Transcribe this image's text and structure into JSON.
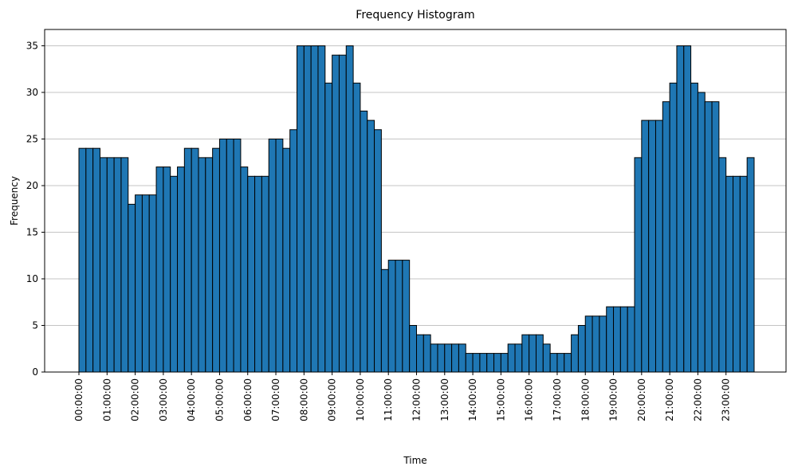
{
  "chart_data": {
    "type": "bar",
    "title": "Frequency Histogram",
    "xlabel": "Time",
    "ylabel": "Frequency",
    "ylim": [
      0,
      36.75
    ],
    "yticks": [
      0,
      5,
      10,
      15,
      20,
      25,
      30,
      35
    ],
    "grid": "y",
    "x_tick_labels": [
      "00:00:00",
      "01:00:00",
      "02:00:00",
      "03:00:00",
      "04:00:00",
      "05:00:00",
      "06:00:00",
      "07:00:00",
      "08:00:00",
      "09:00:00",
      "10:00:00",
      "11:00:00",
      "12:00:00",
      "13:00:00",
      "14:00:00",
      "15:00:00",
      "16:00:00",
      "17:00:00",
      "18:00:00",
      "19:00:00",
      "20:00:00",
      "21:00:00",
      "22:00:00",
      "23:00:00"
    ],
    "bin_width_minutes": 15,
    "values": [
      24,
      24,
      24,
      23,
      23,
      23,
      23,
      18,
      19,
      19,
      19,
      22,
      22,
      21,
      22,
      24,
      24,
      23,
      23,
      24,
      25,
      25,
      25,
      22,
      21,
      21,
      21,
      25,
      25,
      24,
      26,
      35,
      35,
      35,
      35,
      31,
      34,
      34,
      35,
      31,
      28,
      27,
      26,
      11,
      12,
      12,
      12,
      5,
      4,
      4,
      3,
      3,
      3,
      3,
      3,
      2,
      2,
      2,
      2,
      2,
      2,
      3,
      3,
      4,
      4,
      4,
      3,
      2,
      2,
      2,
      4,
      5,
      6,
      6,
      6,
      7,
      7,
      7,
      7,
      23,
      27,
      27,
      27,
      29,
      31,
      35,
      35,
      31,
      30,
      29,
      29,
      23,
      21,
      21,
      21,
      23
    ]
  }
}
